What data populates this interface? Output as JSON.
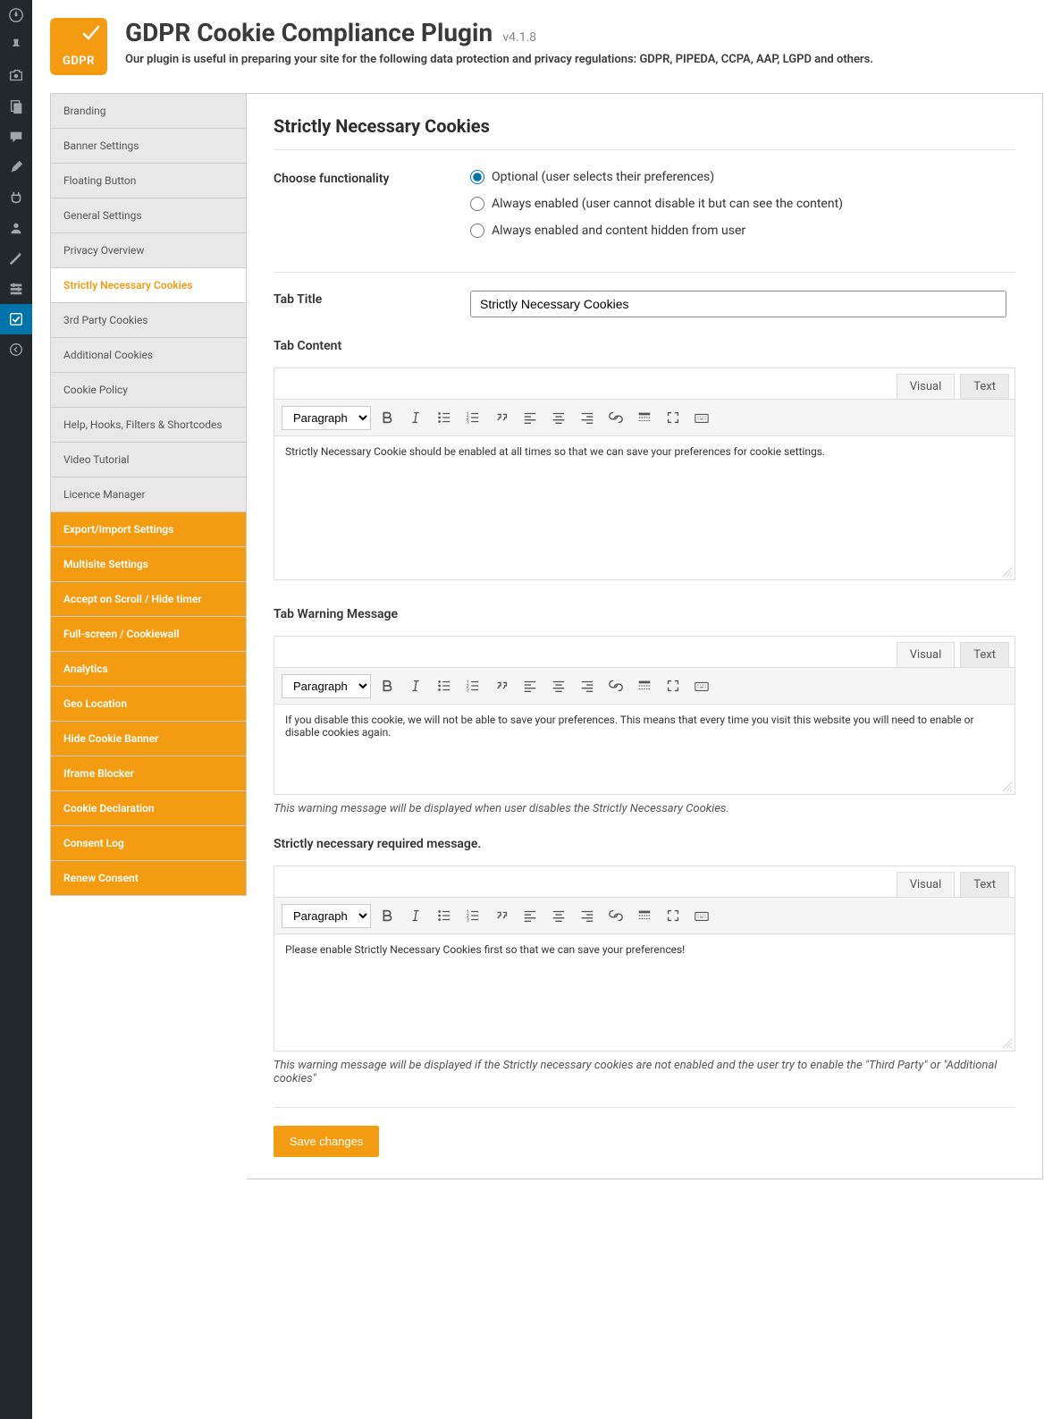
{
  "header": {
    "logo_text": "GDPR",
    "title": "GDPR Cookie Compliance Plugin",
    "version": "v4.1.8",
    "subtitle": "Our plugin is useful in preparing your site for the following data protection and privacy regulations: GDPR, PIPEDA, CCPA, AAP, LGPD and others."
  },
  "wp_sidebar": {
    "icons": [
      "dashboard",
      "pin",
      "media",
      "pages",
      "comments",
      "brush",
      "plugins",
      "users",
      "tools",
      "settings",
      "checkbox",
      "collapse"
    ],
    "active_index": 10
  },
  "settings_nav": [
    {
      "label": "Branding",
      "type": "normal"
    },
    {
      "label": "Banner Settings",
      "type": "normal"
    },
    {
      "label": "Floating Button",
      "type": "normal"
    },
    {
      "label": "General Settings",
      "type": "normal"
    },
    {
      "label": "Privacy Overview",
      "type": "normal"
    },
    {
      "label": "Strictly Necessary Cookies",
      "type": "selected"
    },
    {
      "label": "3rd Party Cookies",
      "type": "normal"
    },
    {
      "label": "Additional Cookies",
      "type": "normal"
    },
    {
      "label": "Cookie Policy",
      "type": "normal"
    },
    {
      "label": "Help, Hooks, Filters & Shortcodes",
      "type": "normal"
    },
    {
      "label": "Video Tutorial",
      "type": "normal"
    },
    {
      "label": "Licence Manager",
      "type": "normal"
    },
    {
      "label": "Export/Import Settings",
      "type": "premium"
    },
    {
      "label": "Multisite Settings",
      "type": "premium"
    },
    {
      "label": "Accept on Scroll / Hide timer",
      "type": "premium"
    },
    {
      "label": "Full-screen / Cookiewall",
      "type": "premium"
    },
    {
      "label": "Analytics",
      "type": "premium"
    },
    {
      "label": "Geo Location",
      "type": "premium"
    },
    {
      "label": "Hide Cookie Banner",
      "type": "premium"
    },
    {
      "label": "Iframe Blocker",
      "type": "premium"
    },
    {
      "label": "Cookie Declaration",
      "type": "premium"
    },
    {
      "label": "Consent Log",
      "type": "premium"
    },
    {
      "label": "Renew Consent",
      "type": "premium"
    }
  ],
  "panel": {
    "title": "Strictly Necessary Cookies",
    "functionality_label": "Choose functionality",
    "radio_options": [
      "Optional (user selects their preferences)",
      "Always enabled (user cannot disable it but can see the content)",
      "Always enabled and content hidden from user"
    ],
    "radio_selected": 0,
    "tab_title_label": "Tab Title",
    "tab_title_value": "Strictly Necessary Cookies",
    "tab_content_label": "Tab Content",
    "tab_warning_label": "Tab Warning Message",
    "required_msg_label": "Strictly necessary required message.",
    "save_button": "Save changes"
  },
  "editor": {
    "tabs": {
      "visual": "Visual",
      "text": "Text"
    },
    "format_select": "Paragraph",
    "content_body": "Strictly Necessary Cookie should be enabled at all times so that we can save your preferences for cookie settings.",
    "warning_body": "If you disable this cookie, we will not be able to save your preferences. This means that every time you visit this website you will need to enable or disable cookies again.",
    "warning_help": "This warning message will be displayed when user disables the Strictly Necessary Cookies.",
    "required_body": "Please enable Strictly Necessary Cookies first so that we can save your preferences!",
    "required_help": "This warning message will be displayed if the Strictly necessary cookies are not enabled and the user try to enable the \"Third Party\" or \"Additional cookies\""
  },
  "colors": {
    "accent": "#f39c12",
    "wp_dark": "#23282d",
    "wp_blue": "#0073aa"
  }
}
